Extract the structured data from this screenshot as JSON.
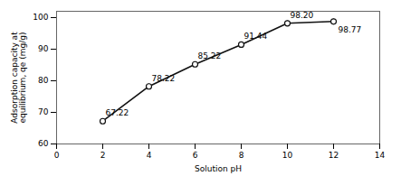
{
  "chart_data": {
    "type": "line",
    "x": [
      2,
      4,
      6,
      8,
      10,
      12
    ],
    "values": [
      67.22,
      78.22,
      85.22,
      91.44,
      98.2,
      98.77
    ],
    "value_labels": [
      "67.22",
      "78.22",
      "85.22",
      "91.44",
      "98.20",
      "98.77"
    ],
    "yerr": [
      0.8,
      0.8,
      0.8,
      0.8,
      0.8,
      0.8
    ],
    "data_labels": true,
    "xlabel": "Solution pH",
    "ylabel": "Adsorption capacity at\nequilibrium, qe (mg/g)",
    "xlim": [
      0,
      14
    ],
    "ylim": [
      60,
      102
    ],
    "xticks": [
      0,
      2,
      4,
      6,
      8,
      10,
      12,
      14
    ],
    "yticks": [
      60,
      70,
      80,
      90,
      100
    ],
    "color": "#111111",
    "marker": "circle",
    "line_style": "solid",
    "grid": false
  }
}
